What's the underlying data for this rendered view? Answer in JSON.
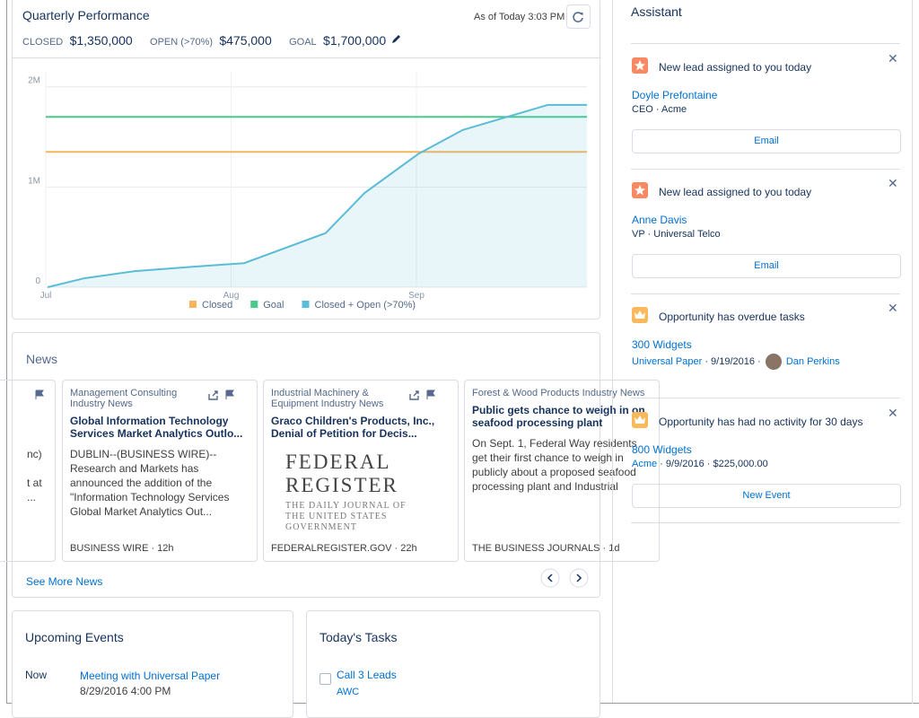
{
  "performance": {
    "title": "Quarterly Performance",
    "as_of": "As of Today 3:03 PM",
    "stats": [
      {
        "label": "CLOSED",
        "value": "$1,350,000"
      },
      {
        "label": "OPEN (>70%)",
        "value": "$475,000"
      },
      {
        "label": "GOAL",
        "value": "$1,700,000"
      }
    ]
  },
  "chart_data": {
    "type": "line",
    "xlim": [
      0,
      2.92
    ],
    "xticks": [
      {
        "value": 0,
        "label": "Jul"
      },
      {
        "value": 1,
        "label": "Aug"
      },
      {
        "value": 2,
        "label": "Sep"
      }
    ],
    "ylim": [
      0,
      2150000
    ],
    "yticks": [
      0,
      {
        "value": 1000000,
        "label": "1M"
      },
      {
        "value": 2000000,
        "label": "2M"
      }
    ],
    "grid": true,
    "legend": "bottom",
    "series": [
      {
        "name": "Closed",
        "color": "#f9b35c",
        "x": [
          0,
          2.92
        ],
        "values": [
          1350000,
          1350000
        ]
      },
      {
        "name": "Goal",
        "color": "#4bc98b",
        "x": [
          0,
          2.92
        ],
        "values": [
          1700000,
          1700000
        ]
      },
      {
        "name": "Closed + Open (>70%)",
        "color": "#5bbcd8",
        "area": true,
        "x": [
          0.01,
          0.21,
          0.48,
          0.8,
          1.07,
          1.51,
          1.72,
          2.01,
          2.25,
          2.71,
          2.92
        ],
        "values": [
          0,
          90000,
          160000,
          205000,
          240000,
          540000,
          940000,
          1330000,
          1570000,
          1820000,
          1820000
        ]
      }
    ]
  },
  "news": {
    "title": "News",
    "partial_lines": [
      "nc)",
      "t at",
      "..."
    ],
    "cards": [
      {
        "source": "Management Consulting Industry News",
        "headline": "Global Information Technology Services Market Analytics Outlo...",
        "body": "DUBLIN--(BUSINESS WIRE)--Research and Markets has announced the addition of the \"Information Technology Services Global Market Analytics Out...",
        "footer": "BUSINESS WIRE · 12h"
      },
      {
        "source": "Industrial Machinery & Equipment Industry News",
        "headline": "Graco Children's Products, Inc., Denial of Petition for Decis...",
        "image_title": "FEDERAL REGISTER",
        "image_subtitle": "THE DAILY JOURNAL OF THE UNITED STATES GOVERNMENT",
        "footer": "FEDERALREGISTER.GOV · 22h"
      },
      {
        "source": "Forest & Wood Products Industry News",
        "headline": "Public gets chance to weigh in on seafood processing plant",
        "body": "On Sept. 1, Federal Way residents get their first chance to weigh in publicly about a proposed seafood processing plant and Industrial",
        "footer": "THE BUSINESS JOURNALS · 1d"
      }
    ],
    "more": "See More News"
  },
  "events": {
    "title": "Upcoming Events",
    "items": [
      {
        "when": "Now",
        "name": "Meeting with Universal Paper",
        "date": "8/29/2016 4:00 PM"
      }
    ]
  },
  "tasks": {
    "title": "Today's Tasks",
    "items": [
      {
        "name": "Call 3 Leads",
        "related": "AWC"
      }
    ]
  },
  "assistant": {
    "title": "Assistant",
    "items": [
      {
        "title": "New lead assigned to you today",
        "name": "Doyle Prefontaine",
        "detail": "CEO · Acme",
        "action": "Email"
      },
      {
        "title": "New lead assigned to you today",
        "name": "Anne Davis",
        "detail": "VP · Universal Telco",
        "action": "Email"
      },
      {
        "title": "Opportunity has overdue tasks",
        "name": "300 Widgets",
        "account": "Universal Paper",
        "date": "9/19/2016",
        "owner": "Dan Perkins"
      },
      {
        "title": "Opportunity has had no activity for 30 days",
        "name": "800 Widgets",
        "account": "Acme",
        "date": "9/9/2016",
        "amount": "$225,000.00",
        "action": "New Event"
      }
    ]
  }
}
